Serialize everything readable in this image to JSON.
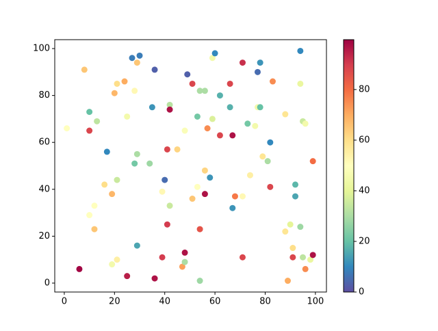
{
  "chart_data": {
    "type": "scatter",
    "x": [
      6,
      8,
      1,
      10,
      10,
      13,
      10,
      12,
      12,
      17,
      16,
      19,
      19,
      20,
      21,
      24,
      21,
      21,
      25,
      25,
      27,
      29,
      30,
      28,
      28,
      29,
      29,
      35,
      36,
      34,
      36,
      39,
      39,
      40,
      42,
      42,
      41,
      42,
      41,
      45,
      47,
      48,
      48,
      49,
      48,
      51,
      51,
      53,
      53,
      54,
      56,
      54,
      54,
      56,
      57,
      56,
      58,
      59,
      60,
      59,
      62,
      62,
      66,
      66,
      67,
      67,
      68,
      71,
      71,
      71,
      73,
      74,
      76,
      77,
      77,
      78,
      78,
      79,
      81,
      82,
      82,
      83,
      88,
      88,
      89,
      90,
      91,
      91,
      92,
      92,
      94,
      94,
      94,
      95,
      95,
      96,
      96,
      98,
      99,
      99
    ],
    "y": [
      6,
      91,
      66,
      73,
      65,
      69,
      29,
      33,
      23,
      56,
      42,
      38,
      8,
      81,
      85,
      86,
      44,
      10,
      71,
      3,
      96,
      94,
      97,
      82,
      51,
      55,
      16,
      75,
      91,
      51,
      2,
      11,
      39,
      44,
      76,
      74,
      57,
      33,
      25,
      57,
      7,
      65,
      9,
      89,
      13,
      85,
      36,
      41,
      71,
      82,
      82,
      23,
      1,
      48,
      66,
      38,
      45,
      96,
      98,
      70,
      80,
      63,
      85,
      75,
      63,
      32,
      37,
      94,
      37,
      11,
      68,
      46,
      67,
      90,
      75,
      75,
      94,
      54,
      52,
      60,
      41,
      86,
      72,
      22,
      1,
      25,
      15,
      11,
      42,
      37,
      99,
      85,
      24,
      69,
      11,
      68,
      6,
      10,
      12,
      52
    ],
    "c": [
      99,
      65,
      50,
      20,
      88,
      33,
      50,
      50,
      65,
      10,
      60,
      68,
      45,
      68,
      60,
      70,
      35,
      55,
      45,
      95,
      8,
      65,
      8,
      52,
      22,
      30,
      15,
      12,
      3,
      28,
      97,
      90,
      52,
      5,
      32,
      97,
      88,
      35,
      90,
      62,
      72,
      48,
      30,
      3,
      97,
      88,
      65,
      50,
      22,
      30,
      30,
      85,
      28,
      62,
      75,
      97,
      12,
      45,
      10,
      38,
      17,
      88,
      88,
      17,
      97,
      12,
      78,
      92,
      52,
      88,
      22,
      55,
      45,
      5,
      45,
      20,
      12,
      58,
      30,
      10,
      88,
      75,
      58,
      58,
      70,
      40,
      60,
      88,
      18,
      15,
      10,
      42,
      28,
      35,
      33,
      45,
      75,
      42,
      97,
      80
    ],
    "colormap": [
      "#5e4fa2",
      "#3288bd",
      "#66c2a5",
      "#abdda4",
      "#e6f598",
      "#ffffbf",
      "#fee08b",
      "#fdae61",
      "#f46d43",
      "#d53e4f",
      "#9e0142"
    ],
    "xlim": [
      -3.8,
      104.4
    ],
    "ylim": [
      -3.8,
      103.8
    ],
    "xticks": [
      0,
      20,
      40,
      60,
      80,
      100
    ],
    "yticks": [
      0,
      20,
      40,
      60,
      80,
      100
    ],
    "clim": [
      0,
      99.7
    ],
    "cticks": [
      0,
      20,
      40,
      60,
      80
    ]
  }
}
